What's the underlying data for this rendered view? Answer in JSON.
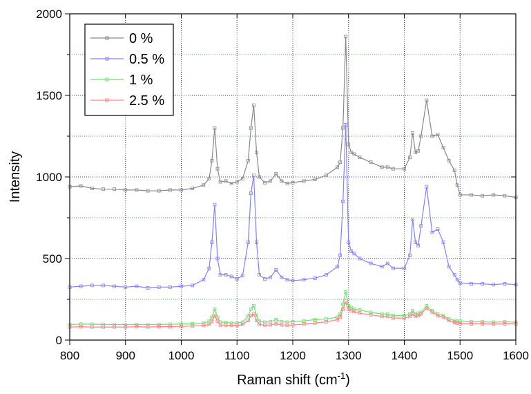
{
  "chart_data": {
    "type": "line",
    "x_label": {
      "text": "Raman shift (cm",
      "superscript": "-1",
      "suffix": ")"
    },
    "y_label": "Intensity",
    "x": [
      800,
      820,
      840,
      860,
      880,
      900,
      920,
      940,
      960,
      980,
      1000,
      1020,
      1040,
      1050,
      1055,
      1060,
      1065,
      1070,
      1080,
      1090,
      1100,
      1110,
      1120,
      1125,
      1130,
      1135,
      1140,
      1150,
      1160,
      1170,
      1180,
      1190,
      1200,
      1220,
      1240,
      1260,
      1280,
      1285,
      1290,
      1295,
      1300,
      1305,
      1310,
      1320,
      1340,
      1360,
      1370,
      1380,
      1400,
      1410,
      1415,
      1420,
      1425,
      1430,
      1440,
      1450,
      1460,
      1470,
      1480,
      1490,
      1495,
      1500,
      1520,
      1540,
      1560,
      1580,
      1600
    ],
    "series": [
      {
        "name": "0 %",
        "color": "#888888",
        "values": [
          940,
          945,
          930,
          925,
          925,
          920,
          920,
          915,
          915,
          920,
          920,
          930,
          950,
          990,
          1100,
          1300,
          1050,
          970,
          975,
          960,
          970,
          990,
          1100,
          1300,
          1440,
          1150,
          1000,
          965,
          975,
          1020,
          975,
          960,
          965,
          975,
          985,
          1010,
          1060,
          1090,
          1300,
          1860,
          1200,
          1150,
          1140,
          1120,
          1090,
          1060,
          1060,
          1050,
          1050,
          1120,
          1270,
          1150,
          1160,
          1250,
          1470,
          1250,
          1260,
          1180,
          1100,
          1040,
          950,
          890,
          890,
          885,
          890,
          885,
          875
        ]
      },
      {
        "name": "0.5 %",
        "color": "#8080ff",
        "values": [
          325,
          330,
          335,
          335,
          330,
          325,
          330,
          320,
          325,
          325,
          330,
          335,
          370,
          440,
          600,
          830,
          500,
          400,
          400,
          390,
          375,
          395,
          600,
          900,
          1010,
          600,
          400,
          375,
          385,
          430,
          385,
          370,
          365,
          370,
          380,
          400,
          450,
          520,
          850,
          1320,
          600,
          545,
          530,
          500,
          470,
          450,
          470,
          440,
          440,
          520,
          740,
          600,
          580,
          700,
          940,
          660,
          680,
          600,
          450,
          400,
          370,
          350,
          345,
          345,
          340,
          345,
          340
        ]
      },
      {
        "name": "1 %",
        "color": "#70e070",
        "values": [
          95,
          98,
          97,
          96,
          95,
          95,
          96,
          95,
          96,
          97,
          98,
          100,
          105,
          115,
          140,
          190,
          140,
          110,
          108,
          105,
          106,
          110,
          150,
          190,
          210,
          150,
          115,
          110,
          112,
          125,
          112,
          110,
          112,
          118,
          125,
          130,
          140,
          160,
          220,
          295,
          210,
          200,
          190,
          185,
          170,
          160,
          160,
          150,
          150,
          160,
          180,
          160,
          165,
          170,
          210,
          180,
          160,
          150,
          130,
          120,
          118,
          115,
          112,
          112,
          110,
          112,
          110
        ]
      },
      {
        "name": "2.5 %",
        "color": "#ff8080",
        "values": [
          80,
          82,
          80,
          80,
          80,
          80,
          82,
          80,
          82,
          82,
          84,
          86,
          90,
          95,
          115,
          150,
          115,
          92,
          92,
          90,
          90,
          95,
          120,
          150,
          160,
          120,
          95,
          92,
          93,
          100,
          93,
          92,
          93,
          98,
          105,
          112,
          125,
          140,
          190,
          230,
          190,
          180,
          175,
          165,
          155,
          145,
          145,
          135,
          135,
          145,
          160,
          145,
          150,
          160,
          195,
          170,
          150,
          140,
          120,
          108,
          104,
          100,
          100,
          100,
          98,
          100,
          100
        ]
      }
    ],
    "xlim": [
      800,
      1600
    ],
    "xticks": [
      800,
      900,
      1000,
      1100,
      1200,
      1300,
      1400,
      1500,
      1600
    ],
    "ylim": [
      0,
      2000
    ],
    "yticks": [
      0,
      500,
      1000,
      1500,
      2000
    ],
    "minor_yticks": [
      250,
      750,
      1250,
      1750
    ],
    "grid": true,
    "legend": "upper-left"
  }
}
